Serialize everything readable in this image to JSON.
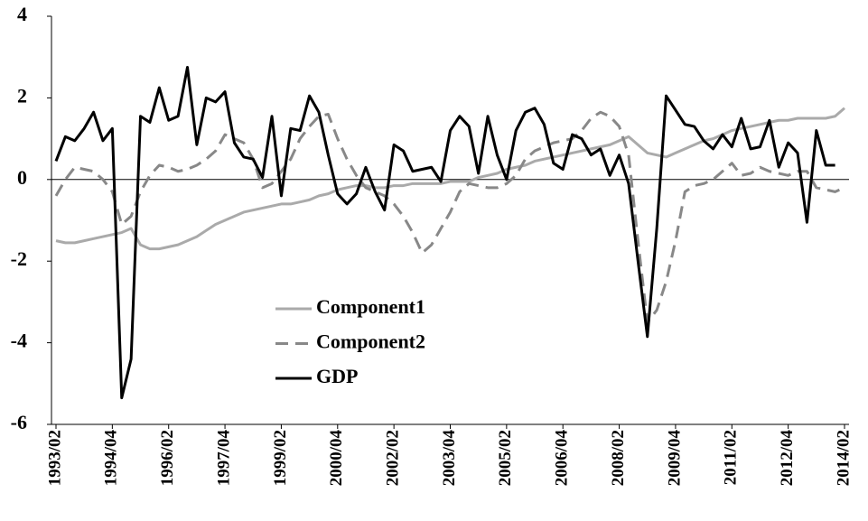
{
  "chart_data": {
    "type": "line",
    "categories": [
      "1993/02",
      null,
      null,
      null,
      null,
      null,
      "1994/04",
      null,
      null,
      null,
      null,
      null,
      "1996/02",
      null,
      null,
      null,
      null,
      null,
      "1997/04",
      null,
      null,
      null,
      null,
      null,
      "1999/02",
      null,
      null,
      null,
      null,
      null,
      "2000/04",
      null,
      null,
      null,
      null,
      null,
      "2002/02",
      null,
      null,
      null,
      null,
      null,
      "2003/04",
      null,
      null,
      null,
      null,
      null,
      "2005/02",
      null,
      null,
      null,
      null,
      null,
      "2006/04",
      null,
      null,
      null,
      null,
      null,
      "2008/02",
      null,
      null,
      null,
      null,
      null,
      "2009/04",
      null,
      null,
      null,
      null,
      null,
      "2011/02",
      null,
      null,
      null,
      null,
      null,
      "2012/04",
      null,
      null,
      null,
      null,
      null,
      "2014/02"
    ],
    "series": [
      {
        "name": "Component1",
        "color": "#aaaaaa",
        "line_style": "solid",
        "values": [
          -1.5,
          -1.55,
          -1.55,
          -1.5,
          -1.45,
          -1.4,
          -1.35,
          -1.3,
          -1.2,
          -1.6,
          -1.7,
          -1.7,
          -1.65,
          -1.6,
          -1.5,
          -1.4,
          -1.25,
          -1.1,
          -1.0,
          -0.9,
          -0.8,
          -0.75,
          -0.7,
          -0.65,
          -0.6,
          -0.6,
          -0.55,
          -0.5,
          -0.4,
          -0.35,
          -0.25,
          -0.2,
          -0.15,
          -0.15,
          -0.2,
          -0.2,
          -0.15,
          -0.15,
          -0.1,
          -0.1,
          -0.1,
          -0.1,
          -0.05,
          -0.05,
          -0.05,
          0.05,
          0.1,
          0.15,
          0.25,
          0.3,
          0.35,
          0.45,
          0.5,
          0.55,
          0.6,
          0.65,
          0.7,
          0.75,
          0.8,
          0.85,
          0.95,
          1.05,
          0.85,
          0.65,
          0.6,
          0.55,
          0.65,
          0.75,
          0.85,
          0.95,
          1.0,
          1.1,
          1.2,
          1.25,
          1.3,
          1.35,
          1.4,
          1.45,
          1.45,
          1.5,
          1.5,
          1.5,
          1.5,
          1.55,
          1.75
        ]
      },
      {
        "name": "Component2",
        "color": "#888888",
        "line_style": "dashed",
        "values": [
          -0.4,
          0.0,
          0.3,
          0.25,
          0.2,
          0.0,
          -0.3,
          -1.1,
          -0.9,
          -0.3,
          0.1,
          0.35,
          0.3,
          0.2,
          0.25,
          0.35,
          0.5,
          0.7,
          1.1,
          1.0,
          0.9,
          0.5,
          -0.2,
          -0.1,
          0.2,
          0.5,
          1.0,
          1.3,
          1.55,
          1.6,
          1.0,
          0.5,
          0.1,
          -0.2,
          -0.3,
          -0.4,
          -0.6,
          -0.9,
          -1.3,
          -1.8,
          -1.6,
          -1.2,
          -0.8,
          -0.3,
          -0.1,
          -0.15,
          -0.2,
          -0.2,
          -0.1,
          0.1,
          0.5,
          0.7,
          0.8,
          0.9,
          0.95,
          1.0,
          1.2,
          1.5,
          1.65,
          1.55,
          1.3,
          0.6,
          -1.5,
          -3.5,
          -3.2,
          -2.5,
          -1.5,
          -0.3,
          -0.15,
          -0.1,
          0.0,
          0.2,
          0.4,
          0.1,
          0.15,
          0.3,
          0.2,
          0.15,
          0.1,
          0.2,
          0.2,
          -0.2,
          -0.25,
          -0.3,
          -0.2
        ]
      },
      {
        "name": "GDP",
        "color": "#000000",
        "line_style": "solid",
        "values": [
          0.45,
          1.05,
          0.95,
          1.25,
          1.65,
          0.95,
          1.25,
          -5.35,
          -4.4,
          1.55,
          1.4,
          2.25,
          1.45,
          1.55,
          2.75,
          0.85,
          2.0,
          1.9,
          2.15,
          0.9,
          0.55,
          0.5,
          0.05,
          1.55,
          -0.4,
          1.25,
          1.2,
          2.05,
          1.65,
          0.6,
          -0.35,
          -0.6,
          -0.35,
          0.3,
          -0.3,
          -0.75,
          0.85,
          0.7,
          0.2,
          0.25,
          0.3,
          -0.05,
          1.2,
          1.55,
          1.3,
          0.15,
          1.55,
          0.6,
          0.0,
          1.2,
          1.65,
          1.75,
          1.35,
          0.4,
          0.25,
          1.1,
          1.0,
          0.6,
          0.75,
          0.1,
          0.6,
          -0.1,
          -2.0,
          -3.85,
          -1.2,
          2.05,
          1.7,
          1.35,
          1.3,
          0.95,
          0.75,
          1.1,
          0.8,
          1.5,
          0.75,
          0.8,
          1.45,
          0.3,
          0.9,
          0.65,
          -1.05,
          1.2,
          0.35,
          0.35,
          null
        ]
      }
    ],
    "ylim": [
      -6,
      4
    ],
    "yticks": [
      -6,
      -4,
      -2,
      0,
      2,
      4
    ],
    "zero_line": true
  }
}
